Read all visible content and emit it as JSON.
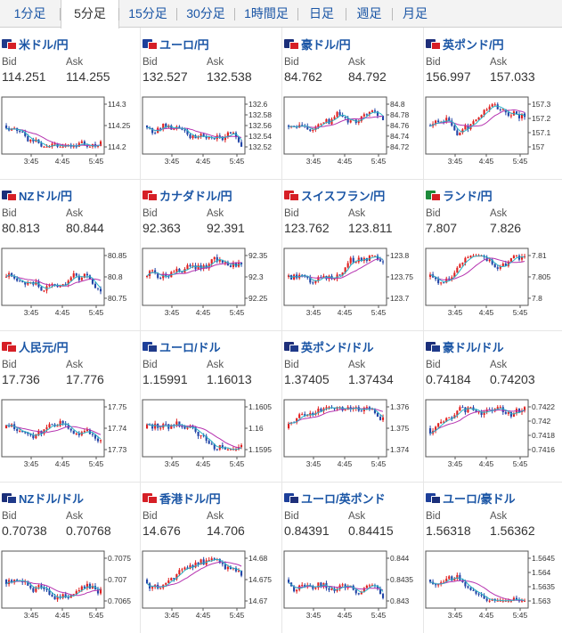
{
  "tabs": [
    "1分足",
    "5分足",
    "15分足",
    "30分足",
    "1時間足",
    "日足",
    "週足",
    "月足"
  ],
  "active_tab": "5分足",
  "bid_label": "Bid",
  "ask_label": "Ask",
  "colors": {
    "up": "#e02020",
    "down": "#2346a8",
    "ma_short": "#28b2c4",
    "ma_long": "#b633b0",
    "link": "#1a55a5"
  },
  "pairs": [
    {
      "name": "米ドル/円",
      "flag": [
        "#1f3a8a",
        "#d61f26"
      ],
      "bid": "114.251",
      "ask": "114.255",
      "yticks": [
        "114.3",
        "114.25",
        "114.2"
      ],
      "xticks": [
        "3:45",
        "4:45",
        "5:45"
      ]
    },
    {
      "name": "ユーロ/円",
      "flag": [
        "#1d3f9a",
        "#d61f26"
      ],
      "bid": "132.527",
      "ask": "132.538",
      "yticks": [
        "132.6",
        "132.58",
        "132.56",
        "132.54",
        "132.52"
      ],
      "xticks": [
        "3:45",
        "4:45",
        "5:45"
      ]
    },
    {
      "name": "豪ドル/円",
      "flag": [
        "#1b2f7a",
        "#d61f26"
      ],
      "bid": "84.762",
      "ask": "84.792",
      "yticks": [
        "84.8",
        "84.78",
        "84.76",
        "84.74",
        "84.72"
      ],
      "xticks": [
        "3:45",
        "4:45",
        "5:45"
      ]
    },
    {
      "name": "英ポンド/円",
      "flag": [
        "#1e2f7a",
        "#d61f26"
      ],
      "bid": "156.997",
      "ask": "157.033",
      "yticks": [
        "157.3",
        "157.2",
        "157.1",
        "157"
      ],
      "xticks": [
        "3:45",
        "4:45",
        "5:45"
      ]
    },
    {
      "name": "NZドル/円",
      "flag": [
        "#1b2f7a",
        "#d61f26"
      ],
      "bid": "80.813",
      "ask": "80.844",
      "yticks": [
        "80.85",
        "80.8",
        "80.75"
      ],
      "xticks": [
        "3:45",
        "4:45",
        "5:45"
      ]
    },
    {
      "name": "カナダドル/円",
      "flag": [
        "#d61f26",
        "#d61f26"
      ],
      "bid": "92.363",
      "ask": "92.391",
      "yticks": [
        "92.35",
        "92.3",
        "92.25"
      ],
      "xticks": [
        "3:45",
        "4:45",
        "5:45"
      ]
    },
    {
      "name": "スイスフラン/円",
      "flag": [
        "#d61f26",
        "#d61f26"
      ],
      "bid": "123.762",
      "ask": "123.811",
      "yticks": [
        "123.8",
        "123.75",
        "123.7"
      ],
      "xticks": [
        "3:45",
        "4:45",
        "5:45"
      ]
    },
    {
      "name": "ランド/円",
      "flag": [
        "#1d8a3a",
        "#d61f26"
      ],
      "bid": "7.807",
      "ask": "7.826",
      "yticks": [
        "7.81",
        "7.805",
        "7.8"
      ],
      "xticks": [
        "3:45",
        "4:45",
        "5:45"
      ]
    },
    {
      "name": "人民元/円",
      "flag": [
        "#d61f26",
        "#d61f26"
      ],
      "bid": "17.736",
      "ask": "17.776",
      "yticks": [
        "17.75",
        "17.74",
        "17.73"
      ],
      "xticks": [
        "3:45",
        "4:45",
        "5:45"
      ]
    },
    {
      "name": "ユーロ/ドル",
      "flag": [
        "#1d3f9a",
        "#1f3a8a"
      ],
      "bid": "1.15991",
      "ask": "1.16013",
      "yticks": [
        "1.1605",
        "1.16",
        "1.1595"
      ],
      "xticks": [
        "3:45",
        "4:45",
        "5:45"
      ]
    },
    {
      "name": "英ポンド/ドル",
      "flag": [
        "#1e2f7a",
        "#1f3a8a"
      ],
      "bid": "1.37405",
      "ask": "1.37434",
      "yticks": [
        "1.376",
        "1.375",
        "1.374"
      ],
      "xticks": [
        "3:45",
        "4:45",
        "5:45"
      ]
    },
    {
      "name": "豪ドル/ドル",
      "flag": [
        "#1b2f7a",
        "#1f3a8a"
      ],
      "bid": "0.74184",
      "ask": "0.74203",
      "yticks": [
        "0.7422",
        "0.742",
        "0.7418",
        "0.7416"
      ],
      "xticks": [
        "3:45",
        "4:45",
        "5:45"
      ]
    },
    {
      "name": "NZドル/ドル",
      "flag": [
        "#1b2f7a",
        "#1f3a8a"
      ],
      "bid": "0.70738",
      "ask": "0.70768",
      "yticks": [
        "0.7075",
        "0.707",
        "0.7065"
      ],
      "xticks": [
        "3:45",
        "4:45",
        "5:45"
      ]
    },
    {
      "name": "香港ドル/円",
      "flag": [
        "#d61f26",
        "#d61f26"
      ],
      "bid": "14.676",
      "ask": "14.706",
      "yticks": [
        "14.68",
        "14.675",
        "14.67"
      ],
      "xticks": [
        "3:45",
        "4:45",
        "5:45"
      ]
    },
    {
      "name": "ユーロ/英ポンド",
      "flag": [
        "#1d3f9a",
        "#1e2f7a"
      ],
      "bid": "0.84391",
      "ask": "0.84415",
      "yticks": [
        "0.844",
        "0.8435",
        "0.843"
      ],
      "xticks": [
        "3:45",
        "4:45",
        "5:45"
      ]
    },
    {
      "name": "ユーロ/豪ドル",
      "flag": [
        "#1d3f9a",
        "#1b2f7a"
      ],
      "bid": "1.56318",
      "ask": "1.56362",
      "yticks": [
        "1.5645",
        "1.564",
        "1.5635",
        "1.563"
      ],
      "xticks": [
        "3:45",
        "4:45",
        "5:45"
      ]
    }
  ]
}
